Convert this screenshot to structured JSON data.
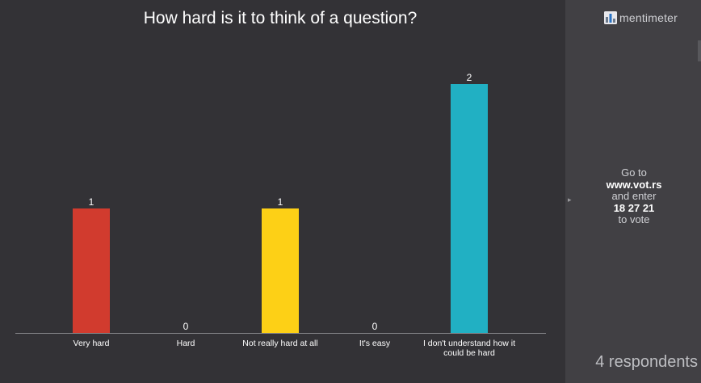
{
  "title": "How hard is it to think of a question?",
  "chart_data": {
    "type": "bar",
    "categories": [
      "Very hard",
      "Hard",
      "Not really hard at all",
      "It's easy",
      "I don't understand how it could be hard"
    ],
    "category_lines": [
      [
        "Very hard"
      ],
      [
        "Hard"
      ],
      [
        "Not really hard at all"
      ],
      [
        "It's easy"
      ],
      [
        "I don't understand how it",
        "could be hard"
      ]
    ],
    "values": [
      1,
      0,
      1,
      0,
      2
    ],
    "colors": [
      "#d13b2e",
      "#e84f3c",
      "#fdd016",
      "#7bc043",
      "#21b0c3"
    ],
    "ylim": [
      0,
      2
    ],
    "grid": false,
    "xlabel": "",
    "ylabel": ""
  },
  "sidebar": {
    "logo_text": "mentimeter",
    "go_to": "Go to",
    "url": "www.vot.rs",
    "and_enter": "and enter",
    "code": "18 27 21",
    "to_vote": "to vote",
    "respondents": "4 respondents"
  },
  "colors": {
    "background": "#333236",
    "sidebar": "#414044",
    "axis": "#8a8a8e",
    "text": "#ffffff"
  }
}
